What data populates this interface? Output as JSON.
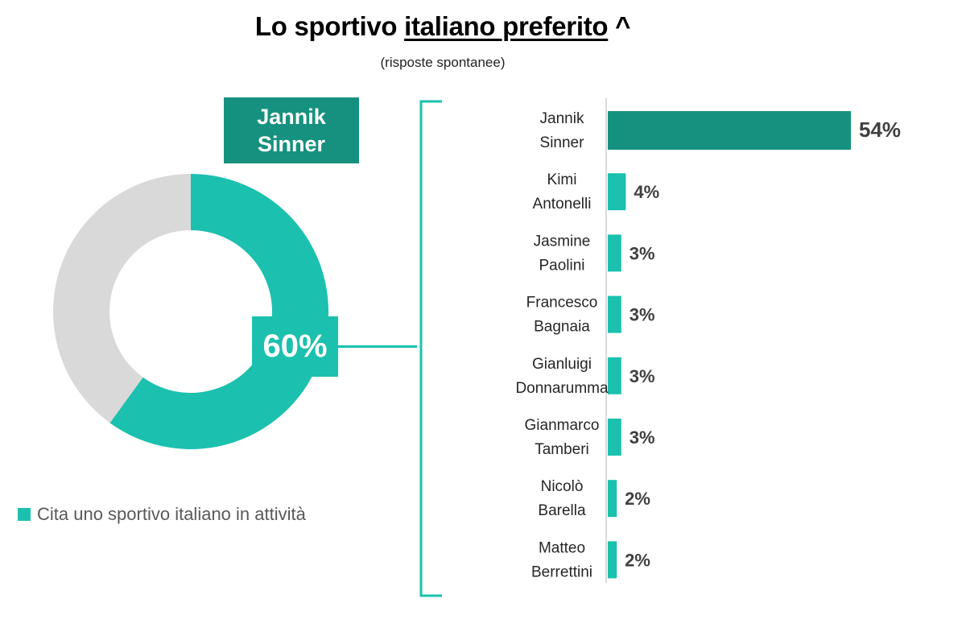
{
  "title": {
    "prefix": "Lo sportivo",
    "underlined": "italiano preferito",
    "suffix": "^",
    "subtitle": "(risposte spontanee)"
  },
  "top_label": {
    "line1": "Jannik",
    "line2": "Sinner"
  },
  "colors": {
    "primary": "#1bc1ae",
    "dark": "#17917f",
    "grey": "#d9d9d9",
    "text": "#404040"
  },
  "chart_data": [
    {
      "type": "pie",
      "variant": "donut",
      "values": [
        60,
        40
      ],
      "labels": [
        "Cita uno sportivo italiano in attività",
        ""
      ],
      "data_label": "60%",
      "legend": [
        "Cita uno sportivo italiano in attività"
      ],
      "legend_position": "bottom-left"
    },
    {
      "type": "bar",
      "orientation": "horizontal",
      "categories": [
        [
          "Jannik",
          "Sinner"
        ],
        [
          "Kimi",
          "Antonelli"
        ],
        [
          "Jasmine",
          "Paolini"
        ],
        [
          "Francesco",
          "Bagnaia"
        ],
        [
          "Gianluigi",
          "Donnarumma"
        ],
        [
          "Gianmarco",
          "Tamberi"
        ],
        [
          "Nicolò",
          "Barella"
        ],
        [
          "Matteo",
          "Berrettini"
        ]
      ],
      "values": [
        54,
        4,
        3,
        3,
        3,
        3,
        2,
        2
      ],
      "value_labels": [
        "54%",
        "4%",
        "3%",
        "3%",
        "3%",
        "3%",
        "2%",
        "2%"
      ],
      "xlim": [
        0,
        54
      ]
    }
  ]
}
